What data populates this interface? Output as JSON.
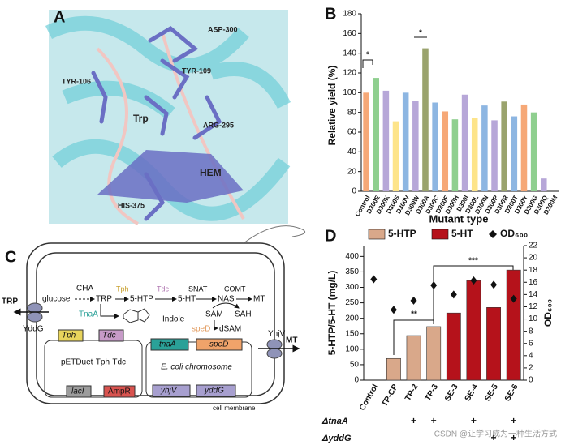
{
  "panel_a": {
    "label": "A",
    "labels": [
      "ASP-300",
      "TYR-109",
      "TYR-106",
      "Trp",
      "ARG-295",
      "HEM",
      "HIS-375"
    ]
  },
  "chart_data": [
    {
      "type": "bar",
      "panel_label": "B",
      "categories": [
        "Control",
        "D300E",
        "D300K",
        "D300S",
        "D300V",
        "D300W",
        "D300A",
        "D300C",
        "D300F",
        "D300H",
        "D300I",
        "D300L",
        "D300N",
        "D300P",
        "D300R",
        "D300T",
        "D300Y",
        "D300G",
        "D300Q",
        "D300M"
      ],
      "values": [
        100,
        115,
        102,
        71,
        100,
        92,
        145,
        90,
        81,
        73,
        98,
        74,
        87,
        72,
        91,
        76,
        88,
        80,
        13,
        0
      ],
      "colors": [
        "#f6a877",
        "#8fcf8f",
        "#b7a7d8",
        "#fde48a",
        "#8db6e2",
        "#b7a7d8",
        "#9aa36d",
        "#8db6e2",
        "#f6a877",
        "#8fcf8f",
        "#b7a7d8",
        "#fde48a",
        "#8db6e2",
        "#b7a7d8",
        "#9aa36d",
        "#8db6e2",
        "#f6a877",
        "#8fcf8f",
        "#b7a7d8",
        "#fde48a"
      ],
      "ylabel": "Relative yield (%)",
      "xlabel": "Mutant type",
      "ylim": [
        0,
        180
      ],
      "yticks": [
        0,
        20,
        40,
        60,
        80,
        100,
        120,
        140,
        160,
        180
      ],
      "annotations": [
        "*",
        "*"
      ]
    },
    {
      "type": "bar",
      "panel_label": "D",
      "categories": [
        "Control",
        "TP-CP",
        "TP-2",
        "TP-3",
        "SE-3",
        "SE-4",
        "SE-5",
        "SE-6"
      ],
      "series": [
        {
          "name": "5-HTP",
          "color": "#d9a88a",
          "values": [
            null,
            70,
            144,
            173,
            null,
            null,
            null,
            null
          ]
        },
        {
          "name": "5-HT",
          "color": "#b5121b",
          "values": [
            null,
            null,
            null,
            null,
            217,
            322,
            235,
            356
          ]
        },
        {
          "name": "OD₆₀₀",
          "type": "scatter",
          "axis": "y2",
          "color": "#111111",
          "values": [
            16.5,
            11.5,
            13,
            15.5,
            14,
            16.3,
            15.6,
            13.3
          ]
        }
      ],
      "ylabel": "5-HTP/5-HT (mg/L)",
      "y2label": "OD₆₀₀",
      "ylim": [
        0,
        435
      ],
      "yticks": [
        0,
        50,
        100,
        150,
        200,
        250,
        300,
        350,
        400
      ],
      "y2lim": [
        0,
        22
      ],
      "y2ticks": [
        0,
        2,
        4,
        6,
        8,
        10,
        12,
        14,
        16,
        18,
        20,
        22
      ],
      "annotations": [
        "**",
        "***"
      ],
      "conditions": [
        {
          "name": "ΔtnaA",
          "marks": [
            null,
            null,
            "+",
            "+",
            null,
            "+",
            null,
            "+"
          ]
        },
        {
          "name": "ΔyddG",
          "marks": [
            null,
            null,
            null,
            null,
            null,
            null,
            "+",
            "+"
          ]
        }
      ]
    }
  ],
  "panel_c": {
    "label": "C",
    "trp_out": "TRP",
    "yddg": "YddG",
    "glucose": "glucose",
    "cha": "CHA",
    "trp": "TRP",
    "tph": "Tph",
    "htp": "5-HTP",
    "tdc": "Tdc",
    "ht": "5-HT",
    "snat": "SNAT",
    "nas": "NAS",
    "comt": "COMT",
    "mt": "MT",
    "tnaa": "TnaA",
    "indole": "Indole",
    "sam": "SAM",
    "sah": "SAH",
    "sped": "speD",
    "dsam": "dSAM",
    "gene_tph": "Tph",
    "gene_tdc": "Tdc",
    "plasmid": "pETDuet-Tph-Tdc",
    "gene_tnaa": "tnaA",
    "gene_sped": "speD",
    "chromosome": "E. coli chromosome",
    "laci": "lacI",
    "ampr": "AmpR",
    "gene_yhjv": "yhjV",
    "gene_yddg": "yddG",
    "yhjv": "YhjV",
    "mt_out": "MT",
    "membrane": "cell membrane"
  },
  "watermark": "CSDN @让学习成为一种生活方式"
}
